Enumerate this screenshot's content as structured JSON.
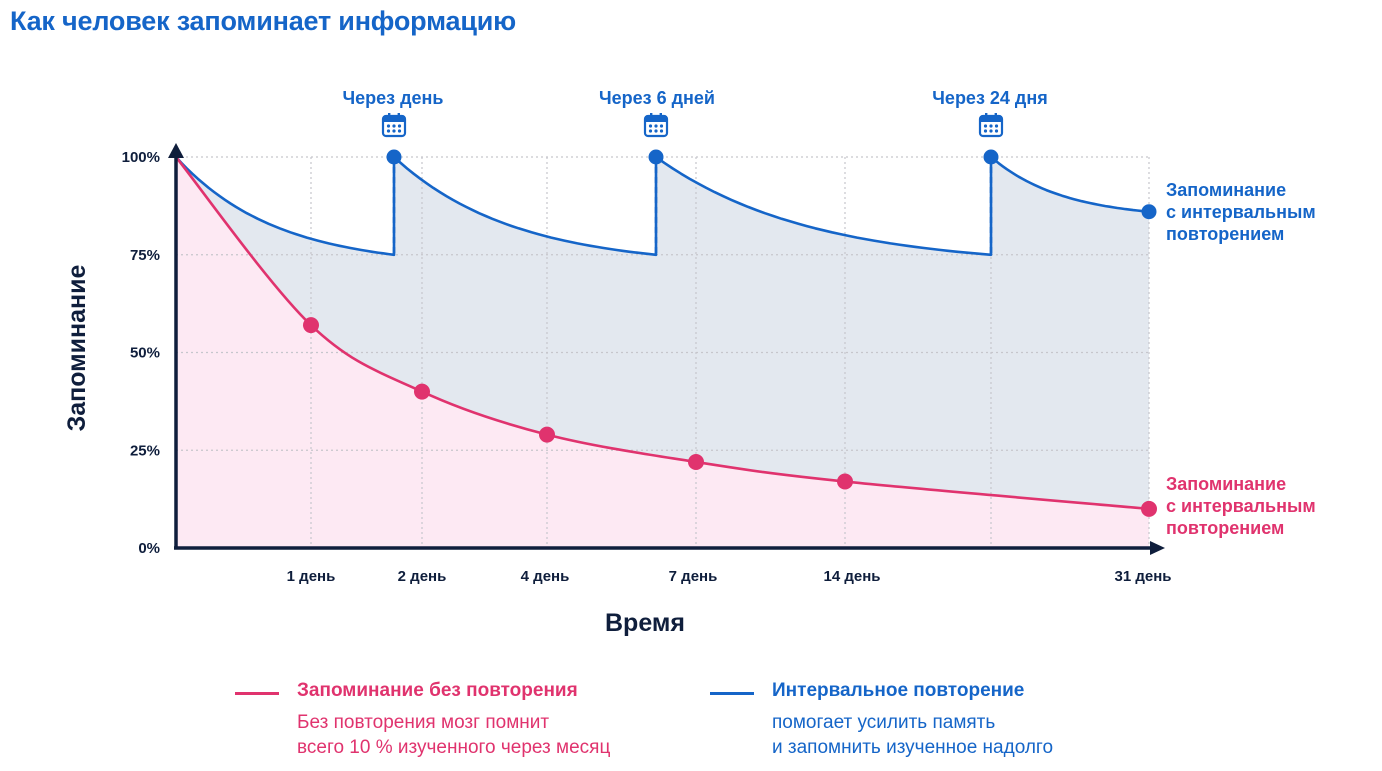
{
  "title": "Как человек запоминает информацию",
  "colors": {
    "blue": "#1565c8",
    "red": "#e0336e",
    "axis": "#0f1e3c",
    "blue_fill": "#e3e8ef",
    "red_fill": "#fde9f3",
    "grid": "#c6c6cc"
  },
  "chart_data": {
    "type": "line",
    "xlabel": "Время",
    "ylabel": "Запоминание",
    "ylim": [
      0,
      100
    ],
    "y_ticks": [
      "0%",
      "25%",
      "50%",
      "75%",
      "100%"
    ],
    "x_ticks": [
      "1 день",
      "2 день",
      "4 день",
      "7 день",
      "14 день",
      "31 день"
    ],
    "grid": true,
    "review_labels": [
      "Через день",
      "Через 6 дней",
      "Через 24 дня"
    ],
    "review_icon": "calendar-icon",
    "series": [
      {
        "name": "Запоминание без повторения",
        "end_label": [
          "Запоминание",
          "с интервальным",
          "повторением"
        ],
        "color": "#e0336e",
        "points": [
          {
            "x": "1 день",
            "y": 57
          },
          {
            "x": "2 день",
            "y": 40
          },
          {
            "x": "4 день",
            "y": 29
          },
          {
            "x": "7 день",
            "y": 22
          },
          {
            "x": "14 день",
            "y": 17
          },
          {
            "x": "31 день",
            "y": 10
          }
        ]
      },
      {
        "name": "Интервальное повторение",
        "end_label": [
          "Запоминание",
          "с интервальным",
          "повторением"
        ],
        "color": "#1565c8",
        "segments": [
          {
            "start": 100,
            "end": 75
          },
          {
            "start": 100,
            "end": 75
          },
          {
            "start": 100,
            "end": 75
          },
          {
            "start": 100,
            "end": 86
          }
        ],
        "review_marker_values": [
          100,
          100,
          100,
          86
        ]
      }
    ]
  },
  "legend": [
    {
      "title": "Запоминание без повторения",
      "desc": [
        "Без повторения мозг помнит",
        "всего 10 % изученного через месяц"
      ]
    },
    {
      "title": "Интервальное повторение",
      "desc": [
        "помогает усилить память",
        "и запомнить изученное надолго"
      ]
    }
  ]
}
